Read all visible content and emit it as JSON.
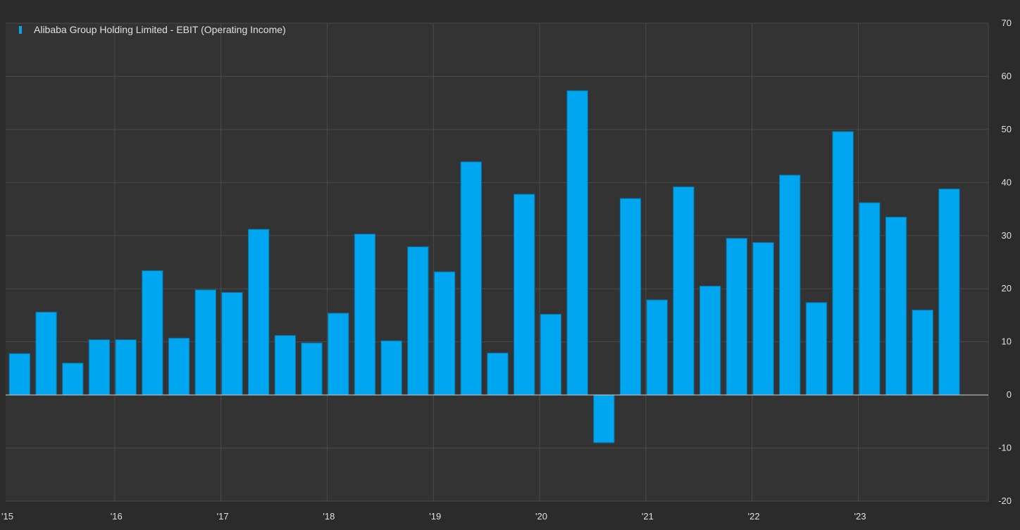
{
  "colors": {
    "background": "#2b2b2b",
    "plot_background": "#333333",
    "grid": "#4a4a4a",
    "bar": "#00a6ef",
    "bar_edge": "#0a6fa0",
    "zero_line": "#cfcfcf",
    "text": "#e0e0e0"
  },
  "chart_data": {
    "type": "bar",
    "title": "",
    "xlabel": "",
    "ylabel": "",
    "legend": {
      "position": "top-left",
      "entries": [
        "Alibaba Group Holding Limited - EBIT (Operating Income)"
      ]
    },
    "ylim": [
      -20,
      70
    ],
    "y_ticks": [
      70,
      60,
      50,
      40,
      30,
      20,
      10,
      0,
      -10,
      -20
    ],
    "x_tick_labels": [
      "'15",
      "'16",
      "'17",
      "'18",
      "'19",
      "'20",
      "'21",
      "'22",
      "'23"
    ],
    "grid": true,
    "y_axis_side": "right",
    "series": [
      {
        "name": "Alibaba Group Holding Limited - EBIT (Operating Income)",
        "values": [
          7.8,
          15.6,
          6.0,
          10.4,
          10.4,
          23.4,
          10.7,
          19.8,
          19.3,
          31.2,
          11.2,
          9.8,
          15.4,
          30.3,
          10.2,
          27.9,
          23.2,
          43.9,
          7.9,
          37.8,
          15.2,
          57.3,
          -9.0,
          37.0,
          17.9,
          39.2,
          20.5,
          29.5,
          28.7,
          41.4,
          17.4,
          49.6,
          36.2,
          33.5,
          16.0,
          38.8
        ]
      }
    ]
  }
}
